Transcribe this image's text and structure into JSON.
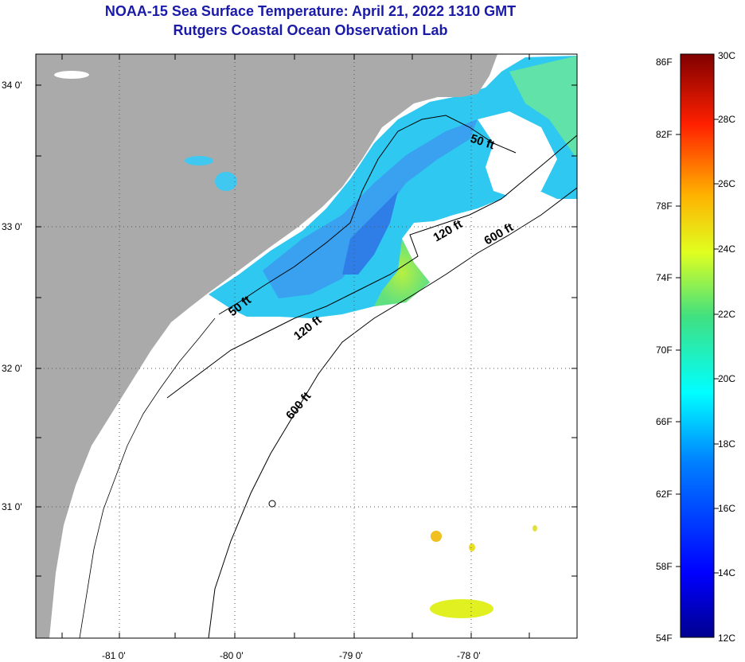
{
  "title": {
    "line1": "NOAA-15 Sea Surface Temperature:  April 21, 2022 1310 GMT",
    "line2": "Rutgers Coastal Ocean Observation Lab"
  },
  "axes": {
    "latitude_labels": [
      "34 0'",
      "33 0'",
      "32 0'",
      "31 0'"
    ],
    "longitude_labels": [
      "-81 0'",
      "-80 0'",
      "-79 0'",
      "-78 0'"
    ]
  },
  "contours": {
    "label_50": "50 ft",
    "label_120": "120 ft",
    "label_600": "600 ft"
  },
  "colorbar": {
    "fahrenheit_labels": [
      "86F",
      "82F",
      "78F",
      "74F",
      "70F",
      "66F",
      "62F",
      "58F",
      "54F"
    ],
    "celsius_labels": [
      "30C",
      "28C",
      "26C",
      "24C",
      "22C",
      "20C",
      "18C",
      "16C",
      "14C",
      "12C"
    ]
  },
  "colors": {
    "land": "#aaaaaa",
    "nodata": "#ffffff",
    "title": "#1a1aa8"
  }
}
